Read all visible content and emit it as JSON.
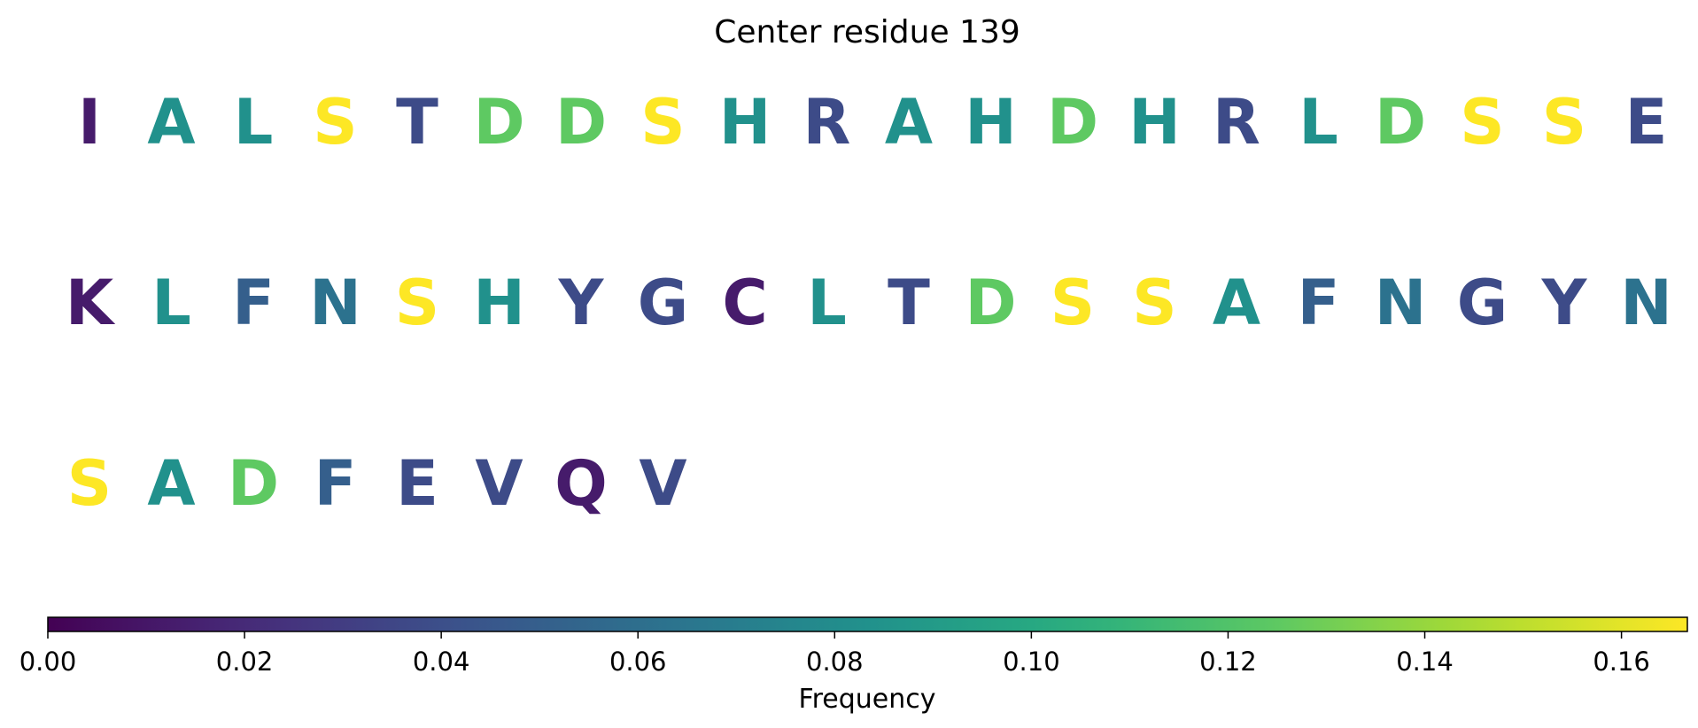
{
  "chart_data": {
    "type": "sequence-colored",
    "title": "Center residue 139",
    "colormap": "viridis",
    "rows": [
      {
        "letters": [
          "I",
          "A",
          "L",
          "S",
          "T",
          "D",
          "D",
          "S",
          "H",
          "R",
          "A",
          "H",
          "D",
          "H",
          "R",
          "L",
          "D",
          "S",
          "S",
          "E"
        ],
        "values": [
          0.0125,
          0.0833,
          0.0833,
          0.1667,
          0.0375,
          0.125,
          0.125,
          0.1667,
          0.0833,
          0.0375,
          0.0833,
          0.0833,
          0.125,
          0.0833,
          0.0375,
          0.0833,
          0.125,
          0.1667,
          0.1667,
          0.0375
        ]
      },
      {
        "letters": [
          "K",
          "L",
          "F",
          "N",
          "S",
          "H",
          "Y",
          "G",
          "C",
          "L",
          "T",
          "D",
          "S",
          "S",
          "A",
          "F",
          "N",
          "G",
          "Y",
          "N"
        ],
        "values": [
          0.0125,
          0.0833,
          0.05,
          0.0625,
          0.1667,
          0.0833,
          0.0375,
          0.0375,
          0.0125,
          0.0833,
          0.0375,
          0.125,
          0.1667,
          0.1667,
          0.0833,
          0.05,
          0.0625,
          0.0375,
          0.0375,
          0.0625
        ]
      },
      {
        "letters": [
          "S",
          "A",
          "D",
          "F",
          "E",
          "V",
          "Q",
          "V"
        ],
        "values": [
          0.1667,
          0.0833,
          0.125,
          0.05,
          0.0375,
          0.0375,
          0.0125,
          0.0375
        ]
      }
    ],
    "colorbar": {
      "label": "Frequency",
      "min": 0.0,
      "max": 0.1667,
      "ticks": [
        0.0,
        0.02,
        0.04,
        0.06,
        0.08,
        0.1,
        0.12,
        0.14,
        0.16
      ],
      "tick_labels": [
        "0.00",
        "0.02",
        "0.04",
        "0.06",
        "0.08",
        "0.10",
        "0.12",
        "0.14",
        "0.16"
      ],
      "orientation": "horizontal",
      "position": "bottom"
    }
  }
}
